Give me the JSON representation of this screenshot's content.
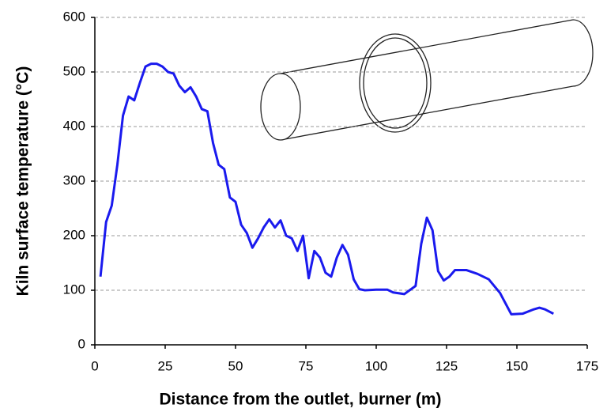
{
  "chart_data": {
    "type": "line",
    "xlabel": "Distance from the outlet, burner (m)",
    "ylabel": "Kiln surface temperature (°C)",
    "x": [
      2,
      4,
      6,
      8,
      10,
      12,
      14,
      16,
      18,
      20,
      22,
      24,
      26,
      28,
      30,
      32,
      34,
      36,
      38,
      40,
      42,
      44,
      46,
      48,
      50,
      52,
      54,
      56,
      58,
      60,
      62,
      64,
      66,
      68,
      70,
      72,
      74,
      76,
      78,
      80,
      82,
      84,
      86,
      88,
      90,
      92,
      94,
      96,
      100,
      104,
      106,
      110,
      114,
      116,
      118,
      120,
      122,
      124,
      126,
      128,
      132,
      136,
      140,
      144,
      148,
      152,
      156,
      158,
      160,
      163
    ],
    "series": [
      {
        "color": "#1a1aee",
        "values": [
          125,
          225,
          255,
          330,
          420,
          455,
          448,
          480,
          510,
          515,
          515,
          510,
          500,
          497,
          475,
          463,
          472,
          455,
          432,
          428,
          370,
          330,
          322,
          270,
          262,
          220,
          205,
          178,
          195,
          215,
          230,
          215,
          228,
          200,
          195,
          172,
          200,
          122,
          172,
          160,
          132,
          125,
          160,
          183,
          165,
          120,
          102,
          100,
          101,
          101,
          96,
          93,
          108,
          185,
          233,
          210,
          135,
          118,
          125,
          137,
          137,
          130,
          120,
          95,
          56,
          57,
          65,
          68,
          65,
          57
        ]
      }
    ],
    "xlim": [
      0,
      175
    ],
    "xticks": [
      0,
      25,
      50,
      75,
      100,
      125,
      150,
      175
    ],
    "ylim": [
      0,
      600
    ],
    "yticks": [
      0,
      100,
      200,
      300,
      400,
      500,
      600
    ],
    "grid": true
  }
}
